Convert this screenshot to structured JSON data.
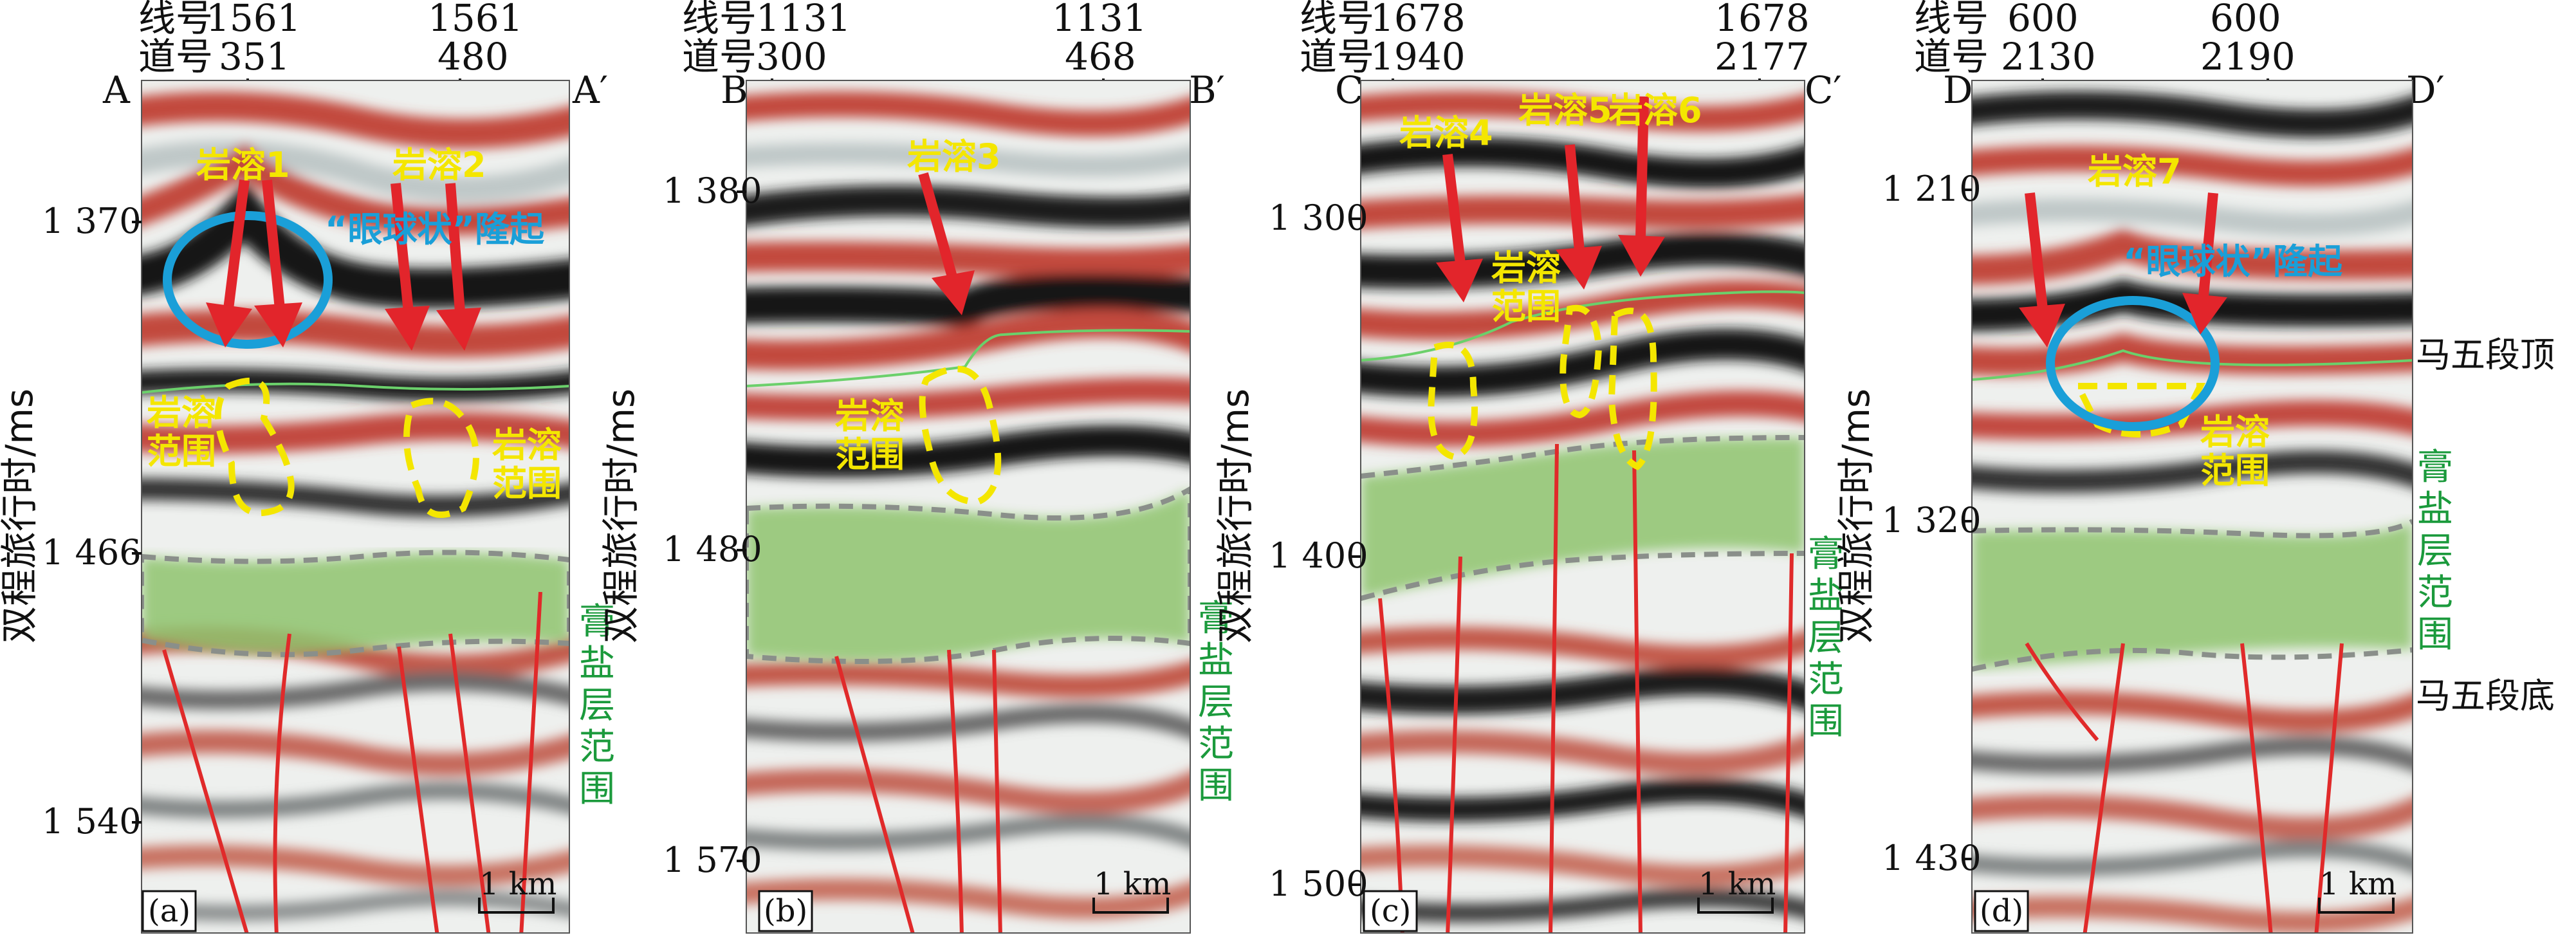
{
  "figure": {
    "panels": [
      {
        "id": "a",
        "label": "(a)",
        "line_label": "线号",
        "trace_label": "道号",
        "line_left": "1561",
        "line_right": "1561",
        "trace_left": "351",
        "trace_right": "480",
        "end_left": "A",
        "end_right": "A′",
        "y_axis_title": "双程旅行时/ms",
        "y_ticks": [
          "1 370",
          "1 466",
          "1 540"
        ],
        "scale_bar": "1 km",
        "karst_labels": [
          "岩溶1",
          "岩溶2"
        ],
        "extent_labels": [
          "岩溶范围",
          "岩溶范围"
        ],
        "bulge_label": "“眼球状”隆起",
        "gypsum_label": "膏盐层范围"
      },
      {
        "id": "b",
        "label": "(b)",
        "line_label": "线号",
        "trace_label": "道号",
        "line_left": "1131",
        "line_right": "1131",
        "trace_left": "300",
        "trace_right": "468",
        "end_left": "B",
        "end_right": "B′",
        "y_axis_title": "双程旅行时/ms",
        "y_ticks": [
          "1 380",
          "1 480",
          "1 570"
        ],
        "scale_bar": "1 km",
        "karst_labels": [
          "岩溶3"
        ],
        "extent_labels": [
          "岩溶范围"
        ],
        "gypsum_label": "膏盐层范围"
      },
      {
        "id": "c",
        "label": "(c)",
        "line_label": "线号",
        "trace_label": "道号",
        "line_left": "1678",
        "line_right": "1678",
        "trace_left": "1940",
        "trace_right": "2177",
        "end_left": "C",
        "end_right": "C′",
        "y_axis_title": "双程旅行时/ms",
        "y_ticks": [
          "1 300",
          "1 400",
          "1 500"
        ],
        "scale_bar": "1 km",
        "karst_labels": [
          "岩溶4",
          "岩溶5",
          "岩溶6"
        ],
        "extent_labels": [
          "岩溶范围"
        ],
        "gypsum_label": "膏盐层范围"
      },
      {
        "id": "d",
        "label": "(d)",
        "line_label": "线号",
        "trace_label": "道号",
        "line_left": "600",
        "line_right": "600",
        "trace_left": "2130",
        "trace_right": "2190",
        "end_left": "D",
        "end_right": "D′",
        "y_axis_title": "双程旅行时/ms",
        "y_ticks": [
          "1 210",
          "1 320",
          "1 430"
        ],
        "scale_bar": "1 km",
        "karst_labels": [
          "岩溶7"
        ],
        "extent_labels": [
          "岩溶范围"
        ],
        "bulge_label": "“眼球状”隆起",
        "gypsum_label": "膏盐层范围",
        "horizon_top": "马五段顶",
        "horizon_bottom": "马五段底"
      }
    ]
  }
}
